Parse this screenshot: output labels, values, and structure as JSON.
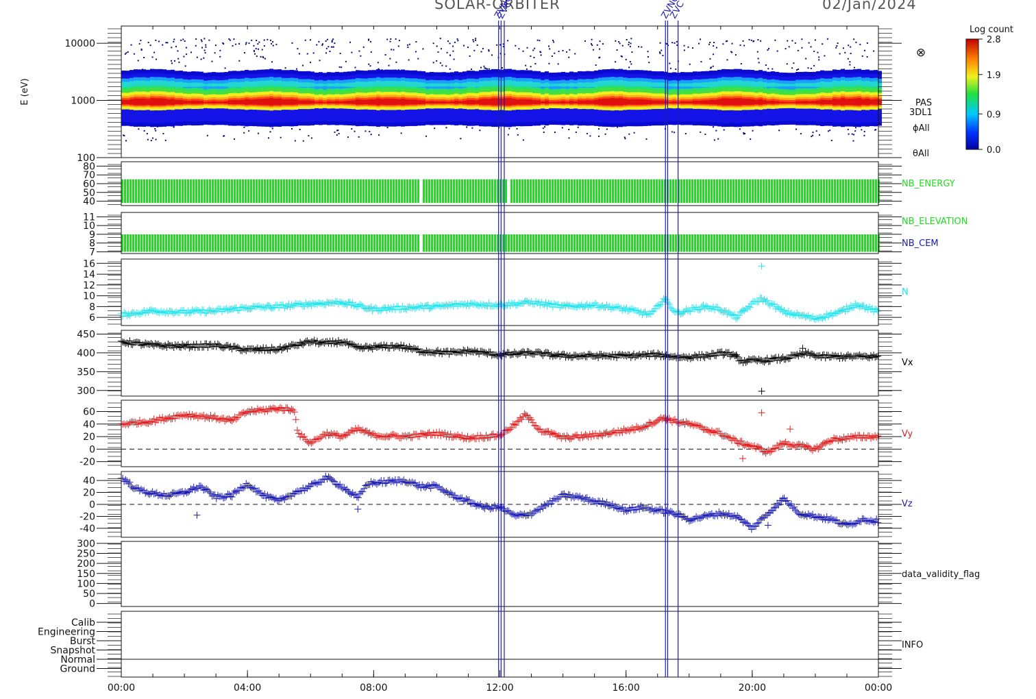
{
  "header": {
    "mission": "SOLAR-ORBITER",
    "date": "02/Jan/2024",
    "event_labels": [
      "ZVNC",
      "ZVC",
      "ZVNC",
      "ZVC"
    ]
  },
  "colorbar": {
    "title": "Log count",
    "ticks": [
      "2.8",
      "1.9",
      "0.9",
      "0.0"
    ],
    "range": [
      0.0,
      2.8
    ]
  },
  "x_axis": {
    "tick_labels": [
      "00:00",
      "04:00",
      "08:00",
      "12:00",
      "16:00",
      "20:00",
      "00:00"
    ],
    "range_hours": [
      0,
      24
    ]
  },
  "events": {
    "lines_hours": [
      11.96,
      12.04,
      12.14,
      17.25,
      17.32,
      17.65
    ],
    "color": "#1a1ab4"
  },
  "panels": {
    "spectrogram": {
      "ylabel": "E (eV)",
      "yticks": [
        "10000",
        "1000",
        "100"
      ],
      "yrange": [
        100,
        20000
      ],
      "scale": "log",
      "right_labels": [
        "PAS",
        "3DL1",
        "ϕAll",
        "θAll"
      ],
      "extra_symbol": "⊗"
    },
    "nb_energy": {
      "label": "NB_ENERGY",
      "color": "#20dd20",
      "yticks": [
        "80",
        "70",
        "60",
        "50",
        "40"
      ],
      "yrange": [
        35,
        85
      ],
      "band": [
        38,
        65
      ],
      "gap_hours": [
        [
          9.45,
          9.55
        ],
        [
          12.18,
          12.25
        ]
      ]
    },
    "nb_elevation": {
      "labels": [
        "NB_ELEVATION",
        "NB_CEM"
      ],
      "label_colors": [
        "#20dd20",
        "#1a1ab4"
      ],
      "color": "#20dd20",
      "yticks": [
        "11",
        "10",
        "9",
        "8",
        "7"
      ],
      "yrange": [
        6.8,
        11.5
      ],
      "band": [
        7.0,
        9.0
      ]
    },
    "density": {
      "label": "N",
      "color": "#22e5ee",
      "yticks": [
        "16",
        "14",
        "12",
        "10",
        "8",
        "6"
      ],
      "yrange": [
        4.5,
        16.8
      ],
      "points": [
        [
          0,
          6.5
        ],
        [
          1,
          7.2
        ],
        [
          2,
          7.0
        ],
        [
          3,
          7.2
        ],
        [
          4,
          7.8
        ],
        [
          5,
          8.0
        ],
        [
          6,
          8.5
        ],
        [
          7,
          8.8
        ],
        [
          8,
          7.5
        ],
        [
          9,
          7.8
        ],
        [
          10,
          8.0
        ],
        [
          11,
          8.5
        ],
        [
          12,
          8.3
        ],
        [
          13,
          8.8
        ],
        [
          14,
          8.0
        ],
        [
          15,
          8.3
        ],
        [
          16,
          7.5
        ],
        [
          16.8,
          6.5
        ],
        [
          17.2,
          9.5
        ],
        [
          17.6,
          6.8
        ],
        [
          18.5,
          8.0
        ],
        [
          19,
          7.5
        ],
        [
          19.5,
          6.0
        ],
        [
          20,
          8.5
        ],
        [
          20.3,
          9.5
        ],
        [
          21,
          7.0
        ],
        [
          22,
          5.8
        ],
        [
          22.8,
          7.0
        ],
        [
          23.3,
          8.5
        ],
        [
          24,
          7.0
        ]
      ],
      "outliers": [
        [
          20.3,
          15.5
        ]
      ]
    },
    "vx": {
      "label": "Vx",
      "color": "#000000",
      "yticks": [
        "450",
        "400",
        "350",
        "300"
      ],
      "yrange": [
        285,
        460
      ],
      "points": [
        [
          0,
          430
        ],
        [
          1,
          420
        ],
        [
          2,
          418
        ],
        [
          3,
          420
        ],
        [
          4,
          408
        ],
        [
          5,
          410
        ],
        [
          5.5,
          420
        ],
        [
          6,
          430
        ],
        [
          6.5,
          425
        ],
        [
          7,
          430
        ],
        [
          7.5,
          412
        ],
        [
          8,
          415
        ],
        [
          8.8,
          418
        ],
        [
          9.5,
          405
        ],
        [
          10.5,
          400
        ],
        [
          11,
          405
        ],
        [
          12,
          395
        ],
        [
          13,
          400
        ],
        [
          14,
          392
        ],
        [
          15,
          392
        ],
        [
          16,
          392
        ],
        [
          17,
          395
        ],
        [
          17.8,
          388
        ],
        [
          18.5,
          392
        ],
        [
          19.2,
          400
        ],
        [
          19.7,
          378
        ],
        [
          20.3,
          380
        ],
        [
          21,
          385
        ],
        [
          21.7,
          398
        ],
        [
          22.2,
          390
        ],
        [
          24,
          390
        ]
      ],
      "outliers": [
        [
          20.3,
          298
        ],
        [
          19.5,
          395
        ],
        [
          21.6,
          412
        ]
      ]
    },
    "vy": {
      "label": "Vy",
      "color": "#e02020",
      "yticks": [
        "60",
        "40",
        "20",
        "0",
        "-20"
      ],
      "yrange": [
        -28,
        78
      ],
      "dashed_zero": true,
      "points": [
        [
          0,
          40
        ],
        [
          1,
          45
        ],
        [
          2,
          55
        ],
        [
          3,
          50
        ],
        [
          3.5,
          45
        ],
        [
          4,
          60
        ],
        [
          4.5,
          62
        ],
        [
          5,
          65
        ],
        [
          5.5,
          62
        ],
        [
          5.6,
          25
        ],
        [
          6,
          10
        ],
        [
          6.5,
          25
        ],
        [
          7,
          20
        ],
        [
          7.5,
          32
        ],
        [
          8,
          22
        ],
        [
          9,
          20
        ],
        [
          10,
          25
        ],
        [
          11,
          18
        ],
        [
          12,
          22
        ],
        [
          12.5,
          40
        ],
        [
          12.8,
          55
        ],
        [
          13.3,
          30
        ],
        [
          14,
          18
        ],
        [
          15,
          22
        ],
        [
          16,
          30
        ],
        [
          16.5,
          35
        ],
        [
          17.2,
          50
        ],
        [
          17.5,
          45
        ],
        [
          18,
          40
        ],
        [
          18.5,
          32
        ],
        [
          19,
          25
        ],
        [
          19.5,
          12
        ],
        [
          20,
          5
        ],
        [
          20.5,
          -5
        ],
        [
          21,
          10
        ],
        [
          21.5,
          5
        ],
        [
          22,
          0
        ],
        [
          22.5,
          15
        ],
        [
          23.5,
          20
        ],
        [
          24,
          20
        ]
      ],
      "outliers": [
        [
          19.7,
          -15
        ],
        [
          20.3,
          58
        ],
        [
          21.2,
          32
        ],
        [
          17.3,
          48
        ]
      ]
    },
    "vz": {
      "label": "Vz",
      "color": "#1a1ab4",
      "yticks": [
        "40",
        "20",
        "0",
        "-20",
        "-40"
      ],
      "yrange": [
        -55,
        55
      ],
      "dashed_zero": true,
      "points": [
        [
          0,
          45
        ],
        [
          0.5,
          25
        ],
        [
          1,
          18
        ],
        [
          1.5,
          15
        ],
        [
          2,
          20
        ],
        [
          2.5,
          30
        ],
        [
          3,
          12
        ],
        [
          3.5,
          15
        ],
        [
          4,
          35
        ],
        [
          4.5,
          15
        ],
        [
          5,
          5
        ],
        [
          5.5,
          20
        ],
        [
          6,
          30
        ],
        [
          6.5,
          45
        ],
        [
          7,
          30
        ],
        [
          7.5,
          10
        ],
        [
          7.8,
          35
        ],
        [
          8.5,
          38
        ],
        [
          9,
          40
        ],
        [
          9.5,
          30
        ],
        [
          10,
          30
        ],
        [
          10.5,
          15
        ],
        [
          11,
          5
        ],
        [
          11.5,
          -5
        ],
        [
          12,
          -5
        ],
        [
          12.5,
          -20
        ],
        [
          13,
          -15
        ],
        [
          13.5,
          0
        ],
        [
          14,
          15
        ],
        [
          14.5,
          12
        ],
        [
          15,
          5
        ],
        [
          15.5,
          0
        ],
        [
          16,
          -10
        ],
        [
          16.5,
          -5
        ],
        [
          17,
          -10
        ],
        [
          17.5,
          -15
        ],
        [
          18,
          -25
        ],
        [
          18.5,
          -20
        ],
        [
          19,
          -15
        ],
        [
          19.5,
          -20
        ],
        [
          20,
          -40
        ],
        [
          20.5,
          -15
        ],
        [
          21,
          10
        ],
        [
          21.5,
          -15
        ],
        [
          22,
          -20
        ],
        [
          22.5,
          -25
        ],
        [
          23,
          -35
        ],
        [
          23.5,
          -25
        ],
        [
          24,
          -28
        ]
      ],
      "outliers": [
        [
          2.4,
          -18
        ],
        [
          7.5,
          -8
        ],
        [
          20.5,
          -35
        ]
      ]
    },
    "validity": {
      "label": "data_validity_flag",
      "yticks": [
        "300",
        "250",
        "200",
        "150",
        "100",
        "50",
        "0"
      ],
      "yrange": [
        -15,
        310
      ]
    },
    "info": {
      "label": "INFO",
      "categories": [
        "Calib",
        "Engineering",
        "Burst",
        "Snapshot",
        "Normal",
        "Ground"
      ],
      "level_line": "Normal"
    }
  },
  "chart_data": {
    "type": "line",
    "x": [
      0,
      4,
      8,
      12,
      16,
      20,
      24
    ],
    "series": [
      {
        "name": "N",
        "values": [
          6.5,
          7.8,
          7.5,
          8.3,
          7.5,
          8.5,
          7.0
        ]
      },
      {
        "name": "Vx",
        "values": [
          430,
          408,
          415,
          395,
          392,
          380,
          390
        ]
      },
      {
        "name": "Vy",
        "values": [
          40,
          60,
          22,
          22,
          30,
          5,
          20
        ]
      },
      {
        "name": "Vz",
        "values": [
          45,
          35,
          38,
          -5,
          -10,
          -40,
          -28
        ]
      }
    ]
  }
}
